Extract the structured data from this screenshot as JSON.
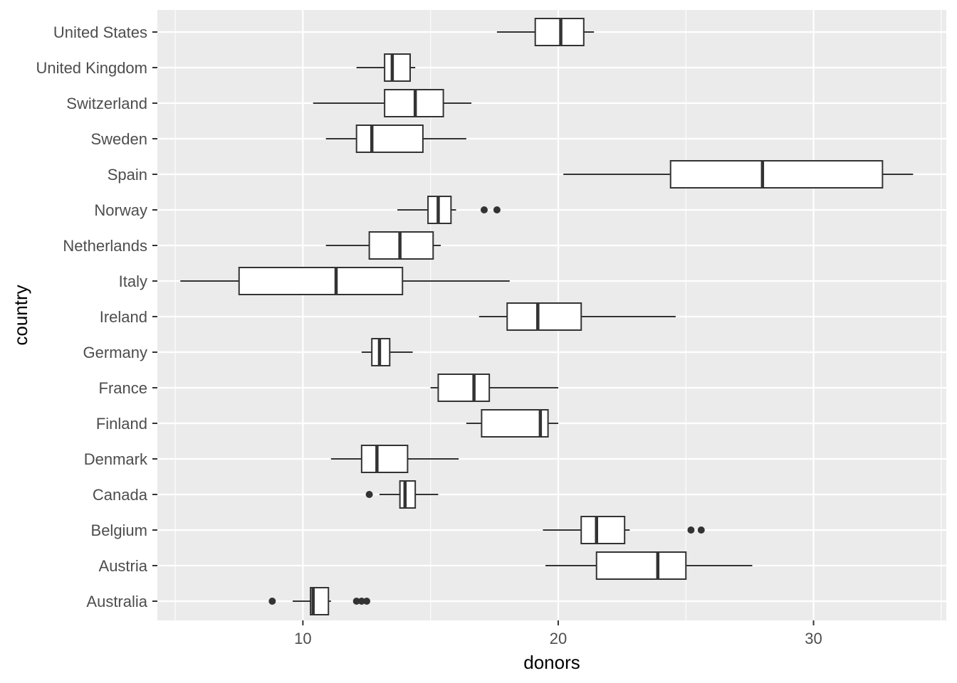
{
  "chart_data": {
    "type": "boxplot",
    "orientation": "horizontal",
    "xlabel": "donors",
    "ylabel": "country",
    "xlim": [
      4.3,
      35.2
    ],
    "x_ticks": [
      10,
      20,
      30
    ],
    "x_minor_ticks": [
      5,
      15,
      25,
      35
    ],
    "grid": true,
    "legend": "none",
    "colors": {
      "panel": "#ebebeb",
      "grid": "#ffffff",
      "box_fill": "#ffffff",
      "box_stroke": "#333333",
      "outlier": "#333333",
      "tick_label": "#4d4d4d",
      "axis_title": "#000000"
    },
    "categories": [
      "United States",
      "United Kingdom",
      "Switzerland",
      "Sweden",
      "Spain",
      "Norway",
      "Netherlands",
      "Italy",
      "Ireland",
      "Germany",
      "France",
      "Finland",
      "Denmark",
      "Canada",
      "Belgium",
      "Austria",
      "Australia"
    ],
    "boxes": [
      {
        "label": "United States",
        "whisker_low": 17.6,
        "q1": 19.1,
        "median": 20.1,
        "q3": 21.0,
        "whisker_high": 21.4,
        "outliers": []
      },
      {
        "label": "United Kingdom",
        "whisker_low": 12.1,
        "q1": 13.2,
        "median": 13.5,
        "q3": 14.2,
        "whisker_high": 14.4,
        "outliers": []
      },
      {
        "label": "Switzerland",
        "whisker_low": 10.4,
        "q1": 13.2,
        "median": 14.4,
        "q3": 15.5,
        "whisker_high": 16.6,
        "outliers": []
      },
      {
        "label": "Sweden",
        "whisker_low": 10.9,
        "q1": 12.1,
        "median": 12.7,
        "q3": 14.7,
        "whisker_high": 16.4,
        "outliers": []
      },
      {
        "label": "Spain",
        "whisker_low": 20.2,
        "q1": 24.4,
        "median": 28.0,
        "q3": 32.7,
        "whisker_high": 33.9,
        "outliers": []
      },
      {
        "label": "Norway",
        "whisker_low": 13.7,
        "q1": 14.9,
        "median": 15.3,
        "q3": 15.8,
        "whisker_high": 16.0,
        "outliers": [
          17.1,
          17.6
        ]
      },
      {
        "label": "Netherlands",
        "whisker_low": 10.9,
        "q1": 12.6,
        "median": 13.8,
        "q3": 15.1,
        "whisker_high": 15.4,
        "outliers": []
      },
      {
        "label": "Italy",
        "whisker_low": 5.2,
        "q1": 7.5,
        "median": 11.3,
        "q3": 13.9,
        "whisker_high": 18.1,
        "outliers": []
      },
      {
        "label": "Ireland",
        "whisker_low": 16.9,
        "q1": 18.0,
        "median": 19.2,
        "q3": 20.9,
        "whisker_high": 24.6,
        "outliers": []
      },
      {
        "label": "Germany",
        "whisker_low": 12.3,
        "q1": 12.7,
        "median": 13.0,
        "q3": 13.4,
        "whisker_high": 14.3,
        "outliers": []
      },
      {
        "label": "France",
        "whisker_low": 15.0,
        "q1": 15.3,
        "median": 16.7,
        "q3": 17.3,
        "whisker_high": 20.0,
        "outliers": []
      },
      {
        "label": "Finland",
        "whisker_low": 16.4,
        "q1": 17.0,
        "median": 19.3,
        "q3": 19.6,
        "whisker_high": 20.0,
        "outliers": []
      },
      {
        "label": "Denmark",
        "whisker_low": 11.1,
        "q1": 12.3,
        "median": 12.9,
        "q3": 14.1,
        "whisker_high": 16.1,
        "outliers": []
      },
      {
        "label": "Canada",
        "whisker_low": 13.0,
        "q1": 13.8,
        "median": 14.0,
        "q3": 14.4,
        "whisker_high": 15.3,
        "outliers": [
          12.6
        ]
      },
      {
        "label": "Belgium",
        "whisker_low": 19.4,
        "q1": 20.9,
        "median": 21.5,
        "q3": 22.6,
        "whisker_high": 22.8,
        "outliers": [
          25.2,
          25.6
        ]
      },
      {
        "label": "Austria",
        "whisker_low": 19.5,
        "q1": 21.5,
        "median": 23.9,
        "q3": 25.0,
        "whisker_high": 27.6,
        "outliers": []
      },
      {
        "label": "Australia",
        "whisker_low": 9.6,
        "q1": 10.3,
        "median": 10.4,
        "q3": 11.0,
        "whisker_high": 11.1,
        "outliers": [
          8.8,
          12.1,
          12.3,
          12.5
        ]
      }
    ]
  }
}
